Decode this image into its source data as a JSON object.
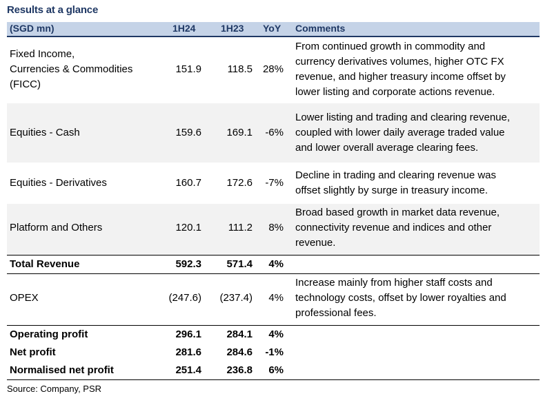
{
  "title": "Results at a glance",
  "header": {
    "col_label": "(SGD mn)",
    "col_1h24": "1H24",
    "col_1h23": "1H23",
    "col_yoy": "YoY",
    "col_comments": "Comments"
  },
  "rows": [
    {
      "label_lines": [
        "Fixed Income,",
        "Currencies & Commodities",
        "(FICC)"
      ],
      "h24": "151.9",
      "h23": "118.5",
      "yoy": "28%",
      "comment_lines": [
        "From continued growth in commodity and",
        "currency derivatives volumes, higher OTC FX",
        "revenue, and higher treasury income offset by",
        "lower listing and corporate actions revenue."
      ]
    },
    {
      "label": "Equities - Cash",
      "h24": "159.6",
      "h23": "169.1",
      "yoy": "-6%",
      "comment_lines": [
        "Lower listing and trading and clearing revenue,",
        "coupled with lower daily average traded value",
        "and lower overall average clearing fees."
      ]
    },
    {
      "label": "Equities - Derivatives",
      "h24": "160.7",
      "h23": "172.6",
      "yoy": "-7%",
      "comment_lines": [
        "Decline in trading and clearing revenue was",
        "offset slightly by surge in treasury income."
      ]
    },
    {
      "label": "Platform and Others",
      "h24": "120.1",
      "h23": "111.2",
      "yoy": "8%",
      "comment_lines": [
        "Broad based growth in market data revenue,",
        "connectivity revenue and indices and other",
        "revenue."
      ]
    },
    {
      "label": "Total Revenue",
      "h24": "592.3",
      "h23": "571.4",
      "yoy": "4%"
    },
    {
      "label": "OPEX",
      "h24": "(247.6)",
      "h23": "(237.4)",
      "yoy": "4%",
      "comment_lines": [
        "Increase mainly from higher staff costs and",
        "technology costs, offset by lower royalties and",
        "professional fees."
      ]
    },
    {
      "label": "Operating profit",
      "h24": "296.1",
      "h23": "284.1",
      "yoy": "4%"
    },
    {
      "label": "Net profit",
      "h24": "281.6",
      "h23": "284.6",
      "yoy": "-1%"
    },
    {
      "label": "Normalised net profit",
      "h24": "251.4",
      "h23": "236.8",
      "yoy": "6%"
    }
  ],
  "source": "Source: Company, PSR",
  "colors": {
    "header_bg": "#c5d3e7",
    "header_text": "#1f3864",
    "row_shade": "#f2f2f2"
  }
}
